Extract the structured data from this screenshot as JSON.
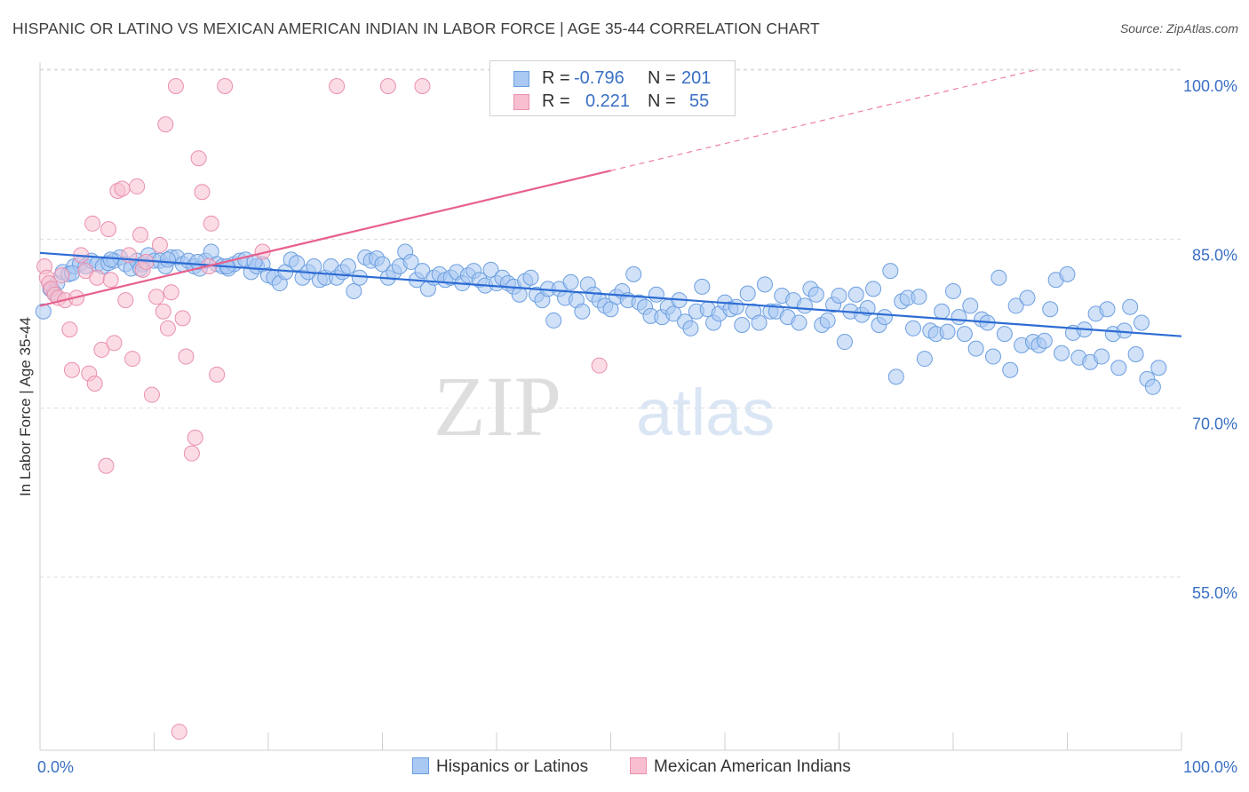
{
  "title": "HISPANIC OR LATINO VS MEXICAN AMERICAN INDIAN IN LABOR FORCE | AGE 35-44 CORRELATION CHART",
  "source": "Source: ZipAtlas.com",
  "watermark": {
    "zip": "ZIP",
    "atlas": "atlas"
  },
  "legend": {
    "rows": [
      {
        "r_label": "R =",
        "r_value": "-0.796",
        "n_label": "N =",
        "n_value": "201",
        "color": "#a9c8f2",
        "border": "#6c9fe0"
      },
      {
        "r_label": "R =",
        "r_value": "0.221",
        "n_label": "N =",
        "n_value": "55",
        "color": "#f7bfd0",
        "border": "#ea8fae"
      }
    ]
  },
  "bottom_legend": {
    "items": [
      {
        "label": "Hispanics or Latinos",
        "color": "#a9c8f2",
        "border": "#6c9fe0"
      },
      {
        "label": "Mexican American Indians",
        "color": "#f7bfd0",
        "border": "#ea8fae"
      }
    ]
  },
  "colors": {
    "blue_fill": "#a9c8f2",
    "blue_stroke": "#6c9fe0",
    "blue_line": "#2d6cd4",
    "pink_fill": "#f7bfd0",
    "pink_stroke": "#ea8fae",
    "pink_line": "#e8608c",
    "tick_label": "#3a6fc4",
    "grid": "#dcdcdc"
  },
  "chart_data": {
    "type": "scatter",
    "title": "HISPANIC OR LATINO VS MEXICAN AMERICAN INDIAN IN LABOR FORCE | AGE 35-44 CORRELATION CHART",
    "xlabel": "",
    "ylabel": "In Labor Force | Age 35-44",
    "xlim": [
      0,
      100
    ],
    "ylim": [
      40,
      102
    ],
    "x_tick_labels": [
      "0.0%",
      "100.0%"
    ],
    "y_ticks": [
      55,
      70,
      85,
      100
    ],
    "y_tick_labels": [
      "55.0%",
      "70.0%",
      "85.0%",
      "100.0%"
    ],
    "grid": true,
    "legend_position": "bottom",
    "series": [
      {
        "name": "Hispanics or Latinos",
        "trend": {
          "x": [
            0,
            100
          ],
          "y": [
            85.2,
            77.8
          ]
        },
        "points": [
          [
            0.3,
            80.0
          ],
          [
            0.9,
            82.0
          ],
          [
            1.5,
            82.5
          ],
          [
            2.0,
            83.5
          ],
          [
            2.5,
            83.3
          ],
          [
            3.0,
            84.0
          ],
          [
            3.5,
            84.2
          ],
          [
            4.0,
            84.0
          ],
          [
            4.5,
            84.5
          ],
          [
            5.0,
            84.2
          ],
          [
            5.5,
            84.0
          ],
          [
            6.0,
            84.3
          ],
          [
            6.5,
            84.5
          ],
          [
            7.0,
            84.8
          ],
          [
            7.5,
            84.2
          ],
          [
            8.0,
            83.8
          ],
          [
            8.5,
            84.5
          ],
          [
            9.0,
            84.2
          ],
          [
            9.5,
            85.0
          ],
          [
            10.0,
            84.5
          ],
          [
            10.5,
            84.5
          ],
          [
            11.0,
            84.0
          ],
          [
            11.5,
            84.8
          ],
          [
            12.0,
            84.8
          ],
          [
            12.5,
            84.2
          ],
          [
            13.0,
            84.5
          ],
          [
            13.5,
            84.0
          ],
          [
            14.0,
            83.8
          ],
          [
            14.5,
            84.5
          ],
          [
            15.0,
            85.3
          ],
          [
            15.5,
            84.2
          ],
          [
            16.0,
            84.0
          ],
          [
            16.5,
            83.8
          ],
          [
            17.0,
            84.2
          ],
          [
            17.5,
            84.5
          ],
          [
            18.0,
            84.6
          ],
          [
            18.5,
            83.5
          ],
          [
            19.0,
            84.0
          ],
          [
            19.5,
            84.2
          ],
          [
            20.0,
            83.2
          ],
          [
            20.5,
            83.0
          ],
          [
            21.0,
            82.5
          ],
          [
            21.5,
            83.5
          ],
          [
            22.0,
            84.6
          ],
          [
            22.5,
            84.3
          ],
          [
            23.0,
            83.0
          ],
          [
            23.5,
            83.5
          ],
          [
            24.0,
            84.0
          ],
          [
            24.5,
            82.8
          ],
          [
            25.0,
            83.0
          ],
          [
            25.5,
            84.0
          ],
          [
            26.0,
            83.0
          ],
          [
            26.5,
            83.5
          ],
          [
            27.0,
            84.0
          ],
          [
            27.5,
            81.8
          ],
          [
            28.0,
            83.0
          ],
          [
            28.5,
            84.8
          ],
          [
            29.0,
            84.5
          ],
          [
            29.5,
            84.7
          ],
          [
            30.0,
            84.2
          ],
          [
            30.5,
            83.0
          ],
          [
            31.0,
            83.5
          ],
          [
            31.5,
            84.0
          ],
          [
            32.0,
            85.3
          ],
          [
            32.5,
            84.4
          ],
          [
            33.0,
            82.8
          ],
          [
            33.5,
            83.6
          ],
          [
            34.0,
            82.0
          ],
          [
            34.5,
            83.0
          ],
          [
            35.0,
            83.3
          ],
          [
            35.5,
            82.8
          ],
          [
            36.0,
            83.0
          ],
          [
            36.5,
            83.5
          ],
          [
            37.0,
            82.5
          ],
          [
            37.5,
            83.2
          ],
          [
            38.0,
            83.6
          ],
          [
            38.5,
            82.8
          ],
          [
            39.0,
            82.3
          ],
          [
            39.5,
            83.7
          ],
          [
            40.0,
            82.5
          ],
          [
            40.5,
            83.0
          ],
          [
            41.0,
            82.5
          ],
          [
            41.5,
            82.2
          ],
          [
            42.0,
            81.5
          ],
          [
            42.5,
            82.7
          ],
          [
            43.0,
            83.0
          ],
          [
            43.5,
            81.5
          ],
          [
            44.0,
            81.0
          ],
          [
            44.5,
            82.0
          ],
          [
            45.0,
            79.2
          ],
          [
            45.5,
            82.0
          ],
          [
            46.0,
            81.2
          ],
          [
            46.5,
            82.6
          ],
          [
            47.0,
            81.0
          ],
          [
            47.5,
            80.0
          ],
          [
            48.0,
            82.4
          ],
          [
            48.5,
            81.5
          ],
          [
            49.0,
            81.0
          ],
          [
            49.5,
            80.5
          ],
          [
            50.0,
            80.2
          ],
          [
            50.5,
            81.3
          ],
          [
            51.0,
            81.8
          ],
          [
            51.5,
            81.0
          ],
          [
            52.0,
            83.3
          ],
          [
            52.5,
            80.8
          ],
          [
            53.0,
            80.4
          ],
          [
            53.5,
            79.6
          ],
          [
            54.0,
            81.5
          ],
          [
            54.5,
            79.5
          ],
          [
            55.0,
            80.4
          ],
          [
            55.5,
            79.8
          ],
          [
            56.0,
            81.0
          ],
          [
            56.5,
            79.1
          ],
          [
            57.0,
            78.5
          ],
          [
            57.5,
            80.0
          ],
          [
            58.0,
            82.2
          ],
          [
            58.5,
            80.2
          ],
          [
            59.0,
            79.0
          ],
          [
            59.5,
            79.8
          ],
          [
            60.0,
            80.8
          ],
          [
            60.5,
            80.2
          ],
          [
            61.0,
            80.4
          ],
          [
            61.5,
            78.8
          ],
          [
            62.0,
            81.6
          ],
          [
            62.5,
            80.0
          ],
          [
            63.0,
            79.0
          ],
          [
            63.5,
            82.4
          ],
          [
            64.0,
            80.0
          ],
          [
            64.5,
            80.0
          ],
          [
            65.0,
            81.4
          ],
          [
            65.5,
            79.5
          ],
          [
            66.0,
            81.0
          ],
          [
            66.5,
            79.0
          ],
          [
            67.0,
            80.5
          ],
          [
            67.5,
            82.0
          ],
          [
            68.0,
            81.5
          ],
          [
            68.5,
            78.8
          ],
          [
            69.0,
            79.2
          ],
          [
            69.5,
            80.6
          ],
          [
            70.0,
            81.4
          ],
          [
            70.5,
            77.3
          ],
          [
            71.0,
            80.0
          ],
          [
            71.5,
            81.5
          ],
          [
            72.0,
            79.7
          ],
          [
            72.5,
            80.3
          ],
          [
            73.0,
            82.0
          ],
          [
            73.5,
            78.8
          ],
          [
            74.0,
            79.5
          ],
          [
            74.5,
            83.6
          ],
          [
            75.0,
            74.2
          ],
          [
            75.5,
            80.9
          ],
          [
            76.0,
            81.2
          ],
          [
            76.5,
            78.5
          ],
          [
            77.0,
            81.3
          ],
          [
            77.5,
            75.8
          ],
          [
            78.0,
            78.3
          ],
          [
            78.5,
            78.0
          ],
          [
            79.0,
            80.0
          ],
          [
            79.5,
            78.2
          ],
          [
            80.0,
            81.8
          ],
          [
            80.5,
            79.5
          ],
          [
            81.0,
            78.0
          ],
          [
            81.5,
            80.5
          ],
          [
            82.0,
            76.7
          ],
          [
            82.5,
            79.3
          ],
          [
            83.0,
            79.0
          ],
          [
            83.5,
            76.0
          ],
          [
            84.0,
            83.0
          ],
          [
            84.5,
            78.0
          ],
          [
            85.0,
            74.8
          ],
          [
            85.5,
            80.5
          ],
          [
            86.0,
            77.0
          ],
          [
            86.5,
            81.2
          ],
          [
            87.0,
            77.3
          ],
          [
            87.5,
            77.0
          ],
          [
            88.0,
            77.4
          ],
          [
            88.5,
            80.2
          ],
          [
            89.0,
            82.8
          ],
          [
            89.5,
            76.3
          ],
          [
            90.0,
            83.3
          ],
          [
            90.5,
            78.1
          ],
          [
            91.0,
            75.9
          ],
          [
            91.5,
            78.4
          ],
          [
            92.0,
            75.5
          ],
          [
            92.5,
            79.8
          ],
          [
            93.0,
            76.0
          ],
          [
            93.5,
            80.2
          ],
          [
            94.0,
            78.0
          ],
          [
            94.5,
            75.0
          ],
          [
            95.0,
            78.3
          ],
          [
            95.5,
            80.4
          ],
          [
            96.0,
            76.2
          ],
          [
            96.5,
            79.0
          ],
          [
            97.0,
            74.0
          ],
          [
            97.5,
            73.3
          ],
          [
            98.0,
            75.0
          ],
          [
            1.2,
            81.7
          ],
          [
            2.8,
            83.4
          ],
          [
            6.2,
            84.6
          ],
          [
            8.8,
            83.8
          ],
          [
            11.2,
            84.6
          ],
          [
            13.8,
            84.4
          ],
          [
            16.4,
            84.0
          ],
          [
            18.8,
            84.4
          ]
        ]
      },
      {
        "name": "Mexican American Indians",
        "trend": {
          "x": [
            0,
            50
          ],
          "y": [
            80.5,
            92.5
          ]
        },
        "trend_extension": {
          "x": [
            50,
            100
          ],
          "y": [
            92.5,
            104.5
          ]
        },
        "points": [
          [
            0.4,
            84.0
          ],
          [
            0.6,
            83.0
          ],
          [
            0.8,
            82.5
          ],
          [
            1.0,
            82.0
          ],
          [
            1.3,
            81.5
          ],
          [
            1.6,
            81.2
          ],
          [
            1.9,
            83.2
          ],
          [
            2.2,
            81.0
          ],
          [
            2.6,
            78.4
          ],
          [
            2.8,
            74.8
          ],
          [
            3.2,
            81.2
          ],
          [
            3.6,
            85.0
          ],
          [
            4.0,
            83.6
          ],
          [
            4.3,
            74.5
          ],
          [
            4.6,
            87.8
          ],
          [
            4.8,
            73.6
          ],
          [
            5.0,
            83.0
          ],
          [
            5.4,
            76.6
          ],
          [
            5.8,
            66.3
          ],
          [
            6.0,
            87.3
          ],
          [
            6.2,
            82.8
          ],
          [
            6.5,
            77.2
          ],
          [
            6.8,
            90.7
          ],
          [
            7.2,
            90.9
          ],
          [
            7.5,
            81.0
          ],
          [
            7.8,
            85.0
          ],
          [
            8.1,
            75.8
          ],
          [
            8.5,
            91.1
          ],
          [
            8.8,
            86.8
          ],
          [
            9.0,
            83.7
          ],
          [
            9.3,
            84.4
          ],
          [
            9.8,
            72.6
          ],
          [
            10.2,
            81.3
          ],
          [
            10.5,
            85.9
          ],
          [
            10.8,
            80.0
          ],
          [
            11.0,
            96.6
          ],
          [
            11.2,
            78.5
          ],
          [
            11.5,
            81.7
          ],
          [
            11.9,
            100.0
          ],
          [
            12.2,
            42.7
          ],
          [
            12.5,
            79.4
          ],
          [
            12.8,
            76.0
          ],
          [
            13.3,
            67.4
          ],
          [
            13.6,
            68.8
          ],
          [
            13.9,
            93.6
          ],
          [
            14.2,
            90.6
          ],
          [
            14.8,
            84.0
          ],
          [
            15.0,
            87.8
          ],
          [
            15.5,
            74.4
          ],
          [
            16.2,
            100.0
          ],
          [
            19.5,
            85.3
          ],
          [
            26.0,
            100.0
          ],
          [
            30.5,
            100.0
          ],
          [
            33.5,
            100.0
          ],
          [
            49.0,
            75.2
          ]
        ]
      }
    ]
  }
}
